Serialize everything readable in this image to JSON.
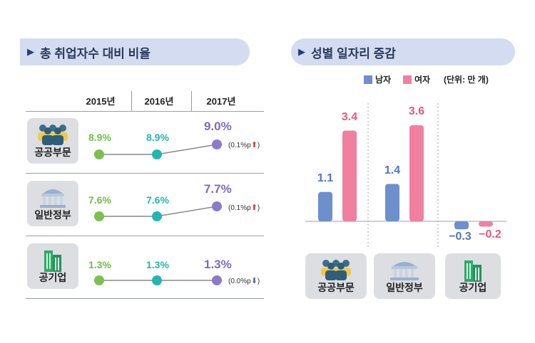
{
  "left_panel": {
    "title": "총 취업자수 대비 비율",
    "years": [
      "2015년",
      "2016년",
      "2017년"
    ],
    "rows": [
      {
        "name": "공공부문",
        "values": [
          "8.9%",
          "8.9%",
          "9.0%"
        ],
        "change": "(0.1%p",
        "direction": "up"
      },
      {
        "name": "일반정부",
        "values": [
          "7.6%",
          "7.6%",
          "7.7%"
        ],
        "change": "(0.1%p",
        "direction": "up"
      },
      {
        "name": "공기업",
        "values": [
          "1.3%",
          "1.3%",
          "1.3%"
        ],
        "change": "(0.0%p",
        "direction": "down"
      }
    ]
  },
  "right_panel": {
    "title": "성별 일자리 증감",
    "unit": "(단위: 만 개)"
  },
  "chart_data": [
    {
      "type": "line",
      "categories": [
        "2015년",
        "2016년",
        "2017년"
      ],
      "series": [
        {
          "name": "공공부문",
          "values": [
            8.9,
            8.9,
            9.0
          ]
        },
        {
          "name": "일반정부",
          "values": [
            7.6,
            7.6,
            7.7
          ]
        },
        {
          "name": "공기업",
          "values": [
            1.3,
            1.3,
            1.3
          ]
        }
      ],
      "ylabel": ""
    },
    {
      "type": "bar",
      "categories": [
        "공공부문",
        "일반정부",
        "공기업"
      ],
      "series": [
        {
          "name": "남자",
          "values": [
            1.1,
            1.4,
            -0.3
          ],
          "labels": [
            "1.1",
            "1.4",
            "−0.3"
          ],
          "color": "#6d8fcc"
        },
        {
          "name": "여자",
          "values": [
            3.4,
            3.6,
            -0.2
          ],
          "labels": [
            "3.4",
            "3.6",
            "−0.2"
          ],
          "color": "#f07fa0"
        }
      ],
      "legend": "top-right",
      "ylim": [
        -0.4,
        3.8
      ]
    }
  ],
  "colors": {
    "green": "#7cc04f",
    "teal": "#22b7ae",
    "purple": "#8b7bc8",
    "blue": "#6d8fcc",
    "pink": "#f07fa0"
  }
}
